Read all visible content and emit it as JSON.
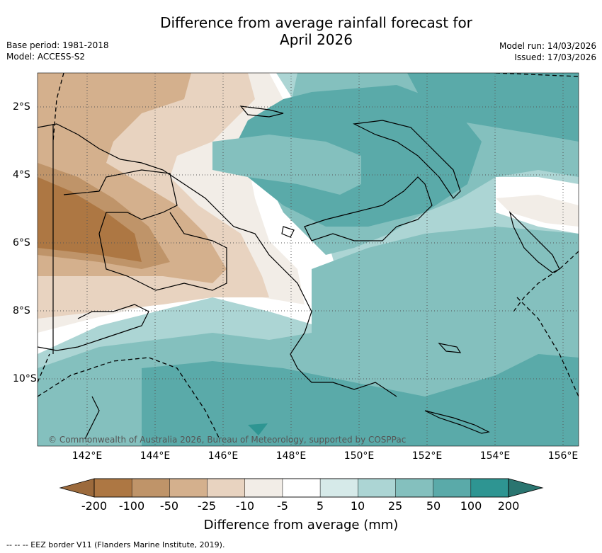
{
  "title_line1": "Difference from average rainfall forecast for",
  "title_line2": "April 2026",
  "base_period": "Base period: 1981-2018",
  "model": "Model: ACCESS-S2",
  "model_run": "Model run: 14/03/2026",
  "issued": "Issued: 17/03/2026",
  "copyright": "© Commonwealth of Australia 2026, Bureau of Meteorology, supported by COSPPac",
  "lon_labels": [
    "142°E",
    "144°E",
    "146°E",
    "148°E",
    "150°E",
    "152°E",
    "154°E",
    "156°E"
  ],
  "lat_labels": [
    "2°S",
    "4°S",
    "6°S",
    "8°S",
    "10°S"
  ],
  "colorbar": {
    "ticks": [
      "-200",
      "-100",
      "-50",
      "-25",
      "-10",
      "-5",
      "5",
      "10",
      "25",
      "50",
      "100",
      "200"
    ],
    "colors": [
      "#9c6a3c",
      "#ad7743",
      "#bf9469",
      "#d4b08d",
      "#e8d3c0",
      "#f2ede7",
      "#ffffff",
      "#d6eae9",
      "#acd5d4",
      "#84c0be",
      "#5aaaa9",
      "#2e9592",
      "#2a7570"
    ],
    "title": "Difference from average (mm)"
  },
  "footer": "--  --  -- EEZ border V11 (Flanders Marine Institute, 2019)."
}
